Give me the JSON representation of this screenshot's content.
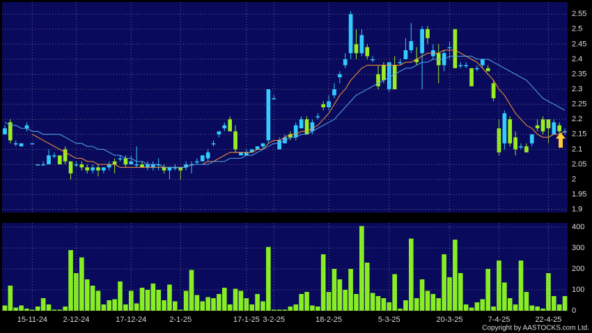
{
  "chart_data": [
    {
      "type": "candlestick",
      "open": [
        2.15,
        2.19,
        2.12,
        2.11,
        2.17,
        2.12,
        2.05,
        2.05,
        2.05,
        2.08,
        2.08,
        2.1,
        2.06,
        2.05,
        2.05,
        2.04,
        2.03,
        2.04,
        2.03,
        2.04,
        2.06,
        2.07,
        2.07,
        2.05,
        2.05,
        2.05,
        2.04,
        2.04,
        2.05,
        2.04,
        2.03,
        2.04,
        2.04,
        2.04,
        2.05,
        2.06,
        2.06,
        2.07,
        2.12,
        2.15,
        2.17,
        2.2,
        2.16,
        2.08,
        2.08,
        2.09,
        2.1,
        2.11,
        2.13,
        2.27,
        2.1,
        2.12,
        2.15,
        2.14,
        2.17,
        2.2,
        2.16,
        2.21,
        2.25,
        2.24,
        2.28,
        2.34,
        2.38,
        2.42,
        2.45,
        2.42,
        2.44,
        2.4,
        2.35,
        2.38,
        2.3,
        2.38,
        2.39,
        2.4,
        2.43,
        2.4,
        2.42,
        2.5,
        2.41,
        2.42,
        2.38,
        2.44,
        2.5,
        2.38,
        2.38,
        2.37,
        2.37,
        2.38,
        2.37,
        2.32,
        2.17,
        2.12,
        2.2,
        2.14,
        2.11,
        2.11,
        2.12,
        2.18,
        2.2,
        2.2,
        2.15,
        2.18,
        2.16
      ],
      "high": [
        2.18,
        2.2,
        2.13,
        2.12,
        2.19,
        2.12,
        2.05,
        2.06,
        2.1,
        2.09,
        2.08,
        2.11,
        2.06,
        2.06,
        2.06,
        2.05,
        2.05,
        2.05,
        2.04,
        2.06,
        2.07,
        2.08,
        2.08,
        2.08,
        2.11,
        2.06,
        2.06,
        2.06,
        2.07,
        2.05,
        2.04,
        2.05,
        2.04,
        2.06,
        2.06,
        2.07,
        2.08,
        2.1,
        2.13,
        2.16,
        2.19,
        2.21,
        2.18,
        2.09,
        2.1,
        2.1,
        2.11,
        2.12,
        2.3,
        2.28,
        2.14,
        2.15,
        2.16,
        2.19,
        2.21,
        2.21,
        2.2,
        2.22,
        2.26,
        2.28,
        2.32,
        2.36,
        2.42,
        2.56,
        2.5,
        2.5,
        2.45,
        2.41,
        2.38,
        2.39,
        2.39,
        2.41,
        2.4,
        2.47,
        2.52,
        2.44,
        2.51,
        2.51,
        2.45,
        2.45,
        2.43,
        2.46,
        2.5,
        2.39,
        2.39,
        2.37,
        2.38,
        2.4,
        2.38,
        2.33,
        2.2,
        2.23,
        2.21,
        2.16,
        2.12,
        2.12,
        2.15,
        2.2,
        2.21,
        2.2,
        2.2,
        2.19,
        2.17
      ],
      "low": [
        2.15,
        2.12,
        2.11,
        2.11,
        2.16,
        2.12,
        2.05,
        2.05,
        2.05,
        2.07,
        2.05,
        2.05,
        2.0,
        2.04,
        2.03,
        2.02,
        2.02,
        2.01,
        2.02,
        2.03,
        2.02,
        2.06,
        2.04,
        2.05,
        2.04,
        2.04,
        2.03,
        2.03,
        2.03,
        2.02,
        2.0,
        2.03,
        2.0,
        2.03,
        2.02,
        2.05,
        2.06,
        2.06,
        2.11,
        2.14,
        2.16,
        2.16,
        2.09,
        2.08,
        2.08,
        2.09,
        2.1,
        2.1,
        2.12,
        2.27,
        2.1,
        2.12,
        2.13,
        2.13,
        2.17,
        2.15,
        2.15,
        2.2,
        2.23,
        2.23,
        2.27,
        2.32,
        2.37,
        2.4,
        2.4,
        2.41,
        2.4,
        2.39,
        2.3,
        2.32,
        2.29,
        2.3,
        2.38,
        2.4,
        2.42,
        2.38,
        2.3,
        2.45,
        2.4,
        2.32,
        2.36,
        2.4,
        2.37,
        2.37,
        2.37,
        2.31,
        2.36,
        2.37,
        2.36,
        2.26,
        2.08,
        2.1,
        2.11,
        2.08,
        2.1,
        2.09,
        2.11,
        2.16,
        2.15,
        2.12,
        2.15,
        2.15,
        2.15
      ],
      "close": [
        2.17,
        2.13,
        2.12,
        2.12,
        2.18,
        2.12,
        2.05,
        2.05,
        2.08,
        2.08,
        2.05,
        2.06,
        2.02,
        2.05,
        2.04,
        2.03,
        2.04,
        2.03,
        2.04,
        2.05,
        2.05,
        2.07,
        2.05,
        2.06,
        2.05,
        2.04,
        2.05,
        2.05,
        2.05,
        2.03,
        2.04,
        2.04,
        2.03,
        2.05,
        2.05,
        2.06,
        2.08,
        2.09,
        2.12,
        2.16,
        2.18,
        2.16,
        2.1,
        2.09,
        2.09,
        2.1,
        2.11,
        2.12,
        2.3,
        2.27,
        2.13,
        2.14,
        2.14,
        2.18,
        2.2,
        2.15,
        2.19,
        2.21,
        2.24,
        2.26,
        2.3,
        2.35,
        2.4,
        2.55,
        2.42,
        2.48,
        2.41,
        2.4,
        2.31,
        2.33,
        2.39,
        2.3,
        2.39,
        2.43,
        2.46,
        2.39,
        2.5,
        2.47,
        2.43,
        2.38,
        2.42,
        2.44,
        2.37,
        2.38,
        2.38,
        2.31,
        2.37,
        2.4,
        2.36,
        2.27,
        2.09,
        2.22,
        2.12,
        2.1,
        2.11,
        2.09,
        2.15,
        2.17,
        2.16,
        2.17,
        2.19,
        2.16,
        2.16
      ],
      "up_color": "#33ccff",
      "down_color": "#99ee22",
      "series": [
        {
          "color": "#ff9933",
          "values": [
            null,
            null,
            null,
            null,
            null,
            2.15,
            2.14,
            2.13,
            2.12,
            2.11,
            2.1,
            2.09,
            2.08,
            2.07,
            2.07,
            2.06,
            2.06,
            2.05,
            2.05,
            2.05,
            2.05,
            2.04,
            2.04,
            2.04,
            2.04,
            2.04,
            2.04,
            2.04,
            2.04,
            2.04,
            2.04,
            2.04,
            2.04,
            2.04,
            2.05,
            2.05,
            2.05,
            2.06,
            2.06,
            2.07,
            2.08,
            2.09,
            2.09,
            2.09,
            2.09,
            2.09,
            2.1,
            2.1,
            2.12,
            2.13,
            2.13,
            2.14,
            2.15,
            2.15,
            2.16,
            2.16,
            2.17,
            2.18,
            2.2,
            2.22,
            2.25,
            2.28,
            2.3,
            2.33,
            2.35,
            2.37,
            2.38,
            2.38,
            2.38,
            2.38,
            2.38,
            2.38,
            2.38,
            2.39,
            2.39,
            2.4,
            2.41,
            2.42,
            2.42,
            2.42,
            2.43,
            2.43,
            2.43,
            2.42,
            2.41,
            2.4,
            2.39,
            2.37,
            2.35,
            2.33,
            2.3,
            2.28,
            2.25,
            2.22,
            2.2,
            2.18,
            2.17,
            2.15,
            2.14,
            2.14,
            2.15,
            2.15,
            2.16
          ]
        },
        {
          "color": "#55aaee",
          "values": [
            2.19,
            2.18,
            2.18,
            2.17,
            2.17,
            2.16,
            2.16,
            2.15,
            2.15,
            2.15,
            2.15,
            2.14,
            2.13,
            2.12,
            2.12,
            2.11,
            2.11,
            2.1,
            2.1,
            2.09,
            2.08,
            2.08,
            2.07,
            2.07,
            2.06,
            2.06,
            2.05,
            2.05,
            2.05,
            2.04,
            2.04,
            2.04,
            2.04,
            2.04,
            2.05,
            2.05,
            2.05,
            2.05,
            2.06,
            2.06,
            2.06,
            2.07,
            2.07,
            2.07,
            2.08,
            2.08,
            2.09,
            2.1,
            2.11,
            2.12,
            2.12,
            2.13,
            2.14,
            2.14,
            2.15,
            2.15,
            2.16,
            2.17,
            2.18,
            2.19,
            2.2,
            2.22,
            2.24,
            2.26,
            2.28,
            2.29,
            2.3,
            2.31,
            2.32,
            2.33,
            2.34,
            2.35,
            2.36,
            2.37,
            2.37,
            2.38,
            2.39,
            2.39,
            2.4,
            2.4,
            2.4,
            2.41,
            2.41,
            2.41,
            2.41,
            2.41,
            2.4,
            2.4,
            2.4,
            2.39,
            2.38,
            2.37,
            2.36,
            2.35,
            2.34,
            2.33,
            2.31,
            2.29,
            2.27,
            2.26,
            2.25,
            2.24,
            2.23
          ]
        }
      ],
      "ylim": [
        1.89,
        2.59
      ],
      "yticks": [
        1.9,
        1.95,
        2,
        2.05,
        2.1,
        2.15,
        2.2,
        2.25,
        2.3,
        2.35,
        2.4,
        2.45,
        2.5,
        2.55
      ],
      "grid": true
    },
    {
      "type": "bar",
      "categories": [
        null,
        null,
        null,
        null,
        null,
        "15-11-24",
        null,
        null,
        null,
        null,
        null,
        null,
        null,
        "2-12-24",
        null,
        null,
        null,
        null,
        null,
        null,
        null,
        null,
        null,
        "17-12-24",
        null,
        null,
        null,
        null,
        null,
        null,
        null,
        null,
        "2-1-25",
        null,
        null,
        null,
        null,
        null,
        null,
        null,
        null,
        null,
        null,
        null,
        "17-1-25",
        null,
        null,
        null,
        null,
        "3-2-25",
        null,
        null,
        null,
        null,
        null,
        null,
        null,
        null,
        null,
        "18-2-25",
        null,
        null,
        null,
        null,
        null,
        null,
        null,
        null,
        null,
        null,
        "5-3-25",
        null,
        null,
        null,
        null,
        null,
        null,
        null,
        null,
        null,
        null,
        "20-3-25",
        null,
        null,
        null,
        null,
        null,
        null,
        null,
        null,
        "7-4-25",
        null,
        null,
        null,
        null,
        null,
        null,
        null,
        null,
        "22-4-25",
        null,
        null,
        null
      ],
      "values": [
        25,
        120,
        15,
        25,
        10,
        5,
        20,
        60,
        30,
        5,
        5,
        20,
        290,
        180,
        255,
        150,
        120,
        95,
        30,
        50,
        55,
        140,
        30,
        95,
        35,
        110,
        100,
        130,
        100,
        50,
        125,
        45,
        5,
        95,
        195,
        75,
        45,
        65,
        60,
        80,
        110,
        30,
        105,
        95,
        60,
        30,
        80,
        45,
        305,
        5,
        5,
        5,
        20,
        30,
        80,
        90,
        25,
        20,
        270,
        90,
        200,
        150,
        100,
        200,
        80,
        405,
        230,
        85,
        70,
        60,
        40,
        175,
        10,
        50,
        345,
        60,
        150,
        95,
        80,
        60,
        270,
        160,
        340,
        180,
        30,
        15,
        40,
        55,
        200,
        20,
        240,
        135,
        60,
        30,
        240,
        90,
        25,
        20,
        10,
        180,
        70,
        30,
        70
      ],
      "color": "#88ee22",
      "ylim": [
        0,
        420
      ],
      "yticks": [
        0,
        100,
        200,
        300,
        400
      ],
      "grid": true,
      "source": "Copyright by AASTOCKS.com Ltd."
    }
  ]
}
